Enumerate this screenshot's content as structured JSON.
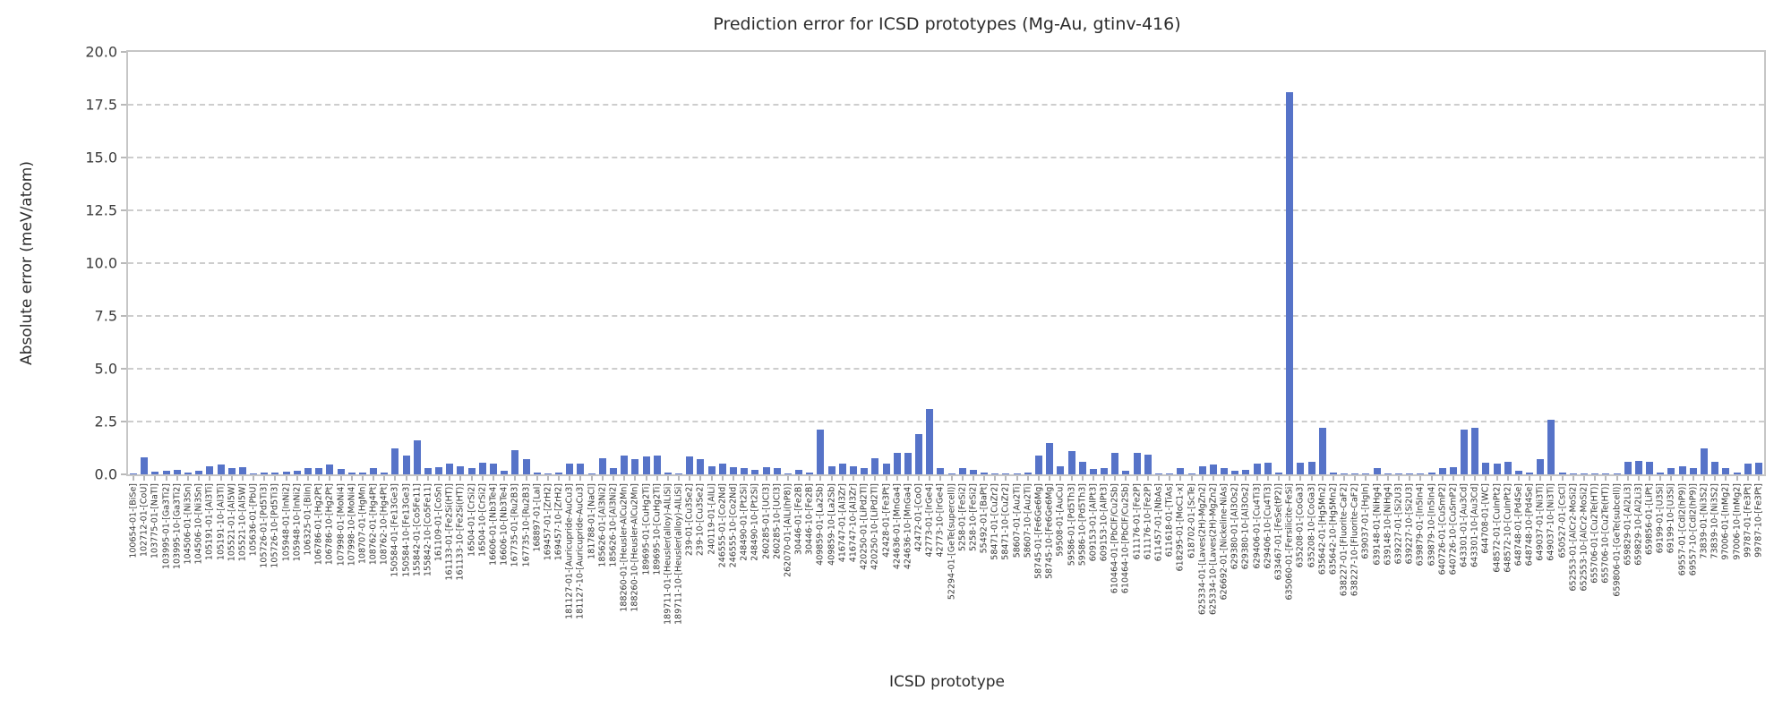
{
  "chart_data": {
    "type": "bar",
    "title": "Prediction error for ICSD prototypes (Mg-Au, gtinv-416)",
    "xlabel": "ICSD prototype",
    "ylabel": "Absolute error (meV/atom)",
    "ylim": [
      0,
      20
    ],
    "yticks": [
      "0.0",
      "2.5",
      "5.0",
      "7.5",
      "10.0",
      "12.5",
      "15.0",
      "17.5",
      "20.0"
    ],
    "grid": "horizontal-dashed",
    "legend": "none",
    "bar_color": "#5673C8",
    "categories": [
      "100654-01-[BiSe]",
      "102712-01-[CoU]",
      "103775-01-[NaTl]",
      "103995-01-[Ga3Ti2]",
      "103995-10-[Ga3Ti2]",
      "104506-01-[Ni3Sn]",
      "104506-10-[Ni3Sn]",
      "105191-01-[Al3Ti]",
      "105191-10-[Al3Ti]",
      "105521-01-[Al5W]",
      "105521-10-[Al5W]",
      "105636-01-[PbU]",
      "105726-01-[Pd5Ti3]",
      "105726-10-[Pd5Ti3]",
      "105948-01-[InNi2]",
      "105948-10-[InNi2]",
      "106325-01-[BiIn]",
      "106786-01-[Hg2Pt]",
      "106786-10-[Hg2Pt]",
      "107998-01-[MoNi4]",
      "107998-10-[MoNi4]",
      "108707-01-[HgMn]",
      "108762-01-[Hg4Pt]",
      "108762-10-[Hg4Pt]",
      "150584-01-[Fe13Ge3]",
      "150584-10-[Fe13Ge3]",
      "155842-01-[Co5Fe11]",
      "155842-10-[Co5Fe11]",
      "161109-01-[CoSn]",
      "161133-01-[Fe2Si(HT)]",
      "161133-10-[Fe2Si(HT)]",
      "16504-01-[CrSi2]",
      "16504-10-[CrSi2]",
      "16606-01-[Nb3Te4]",
      "16606-10-[Nb3Te4]",
      "167735-01-[Ru2B3]",
      "167735-10-[Ru2B3]",
      "168897-01-[LaI]",
      "169457-01-[ZrH2]",
      "169457-10-[ZrH2]",
      "181127-01-[Auricupride-AuCu3]",
      "181127-10-[Auricupride-AuCu3]",
      "181788-01-[NaCl]",
      "185626-01-[Al3Ni2]",
      "185626-10-[Al3Ni2]",
      "188260-01-[Heusler-AlCu2Mn]",
      "188260-10-[Heusler-AlCu2Mn]",
      "189695-01-[CuHg2Ti]",
      "189695-10-[CuHg2Ti]",
      "189711-01-[Heusler(alloy)-AlLiSi]",
      "189711-10-[Heusler(alloy)-AlLiSi]",
      "239-01-[Cu3Se2]",
      "239-10-[Cu3Se2]",
      "240119-01-[AlLi]",
      "246555-01-[Co2Nd]",
      "246555-10-[Co2Nd]",
      "248490-01-[Pt2Si]",
      "248490-10-[Pt2Si]",
      "260285-01-[UCl3]",
      "260285-10-[UCl3]",
      "262070-01-[AlLi(hP8)]",
      "30446-01-[Fe2B]",
      "30446-10-[Fe2B]",
      "409859-01-[La2Sb]",
      "409859-10-[La2Sb]",
      "416747-01-[Al3Zr]",
      "416747-10-[Al3Zr]",
      "420250-01-[LiPd2Tl]",
      "420250-10-[LiPd2Tl]",
      "42428-01-[Fe3Pt]",
      "424636-01-[MnGa4]",
      "424636-10-[MnGa4]",
      "42472-01-[CoO]",
      "42773-01-[IrGe4]",
      "42773-10-[IrGe4]",
      "52294-01-[GeTe(supercell)]",
      "5258-01-[FeSi2]",
      "5258-10-[FeSi2]",
      "55492-01-[BaPt]",
      "58471-01-[CuZr2]",
      "58471-10-[CuZr2]",
      "58607-01-[Au2Ti]",
      "58607-10-[Au2Ti]",
      "58745-01-[Fe6Ge6Mg]",
      "58745-10-[Fe6Ge6Mg]",
      "59508-01-[AuCu]",
      "59586-01-[Pd5Th3]",
      "59586-10-[Pd5Th3]",
      "609153-01-[AlPt3]",
      "609153-10-[AlPt3]",
      "610464-01-[PbClF/Cu2Sb]",
      "610464-10-[PbClF/Cu2Sb]",
      "611176-01-[Fe2P]",
      "611176-10-[Fe2P]",
      "611457-01-[NbAs]",
      "611618-01-[TiAs]",
      "618295-01-[MoC1-x]",
      "618702-01-[ScTe]",
      "625334-01-[Laves(2H)-MgZn2]",
      "625334-10-[Laves(2H)-MgZn2]",
      "626692-01-[Nickeline-NiAs]",
      "629380-01-[Al3Os2]",
      "629380-10-[Al3Os2]",
      "629406-01-[Cu4Ti3]",
      "629406-10-[Cu4Ti3]",
      "633467-01-[FeSe(tP2)]",
      "635060-01-[Fersilicite-FeSi]",
      "635208-01-[CoGa3]",
      "635208-10-[CoGa3]",
      "635642-01-[Hg5Mn2]",
      "635642-10-[Hg5Mn2]",
      "638227-01-[Fluorite-CaF2]",
      "638227-10-[Fluorite-CaF2]",
      "639037-01-[HgIn]",
      "639148-01-[NiHg4]",
      "639148-10-[NiHg4]",
      "639227-01-[Si2U3]",
      "639227-10-[Si2U3]",
      "639879-01-[In5In4]",
      "639879-10-[In5In4]",
      "640726-01-[CuSmP2]",
      "640726-10-[CuSmP2]",
      "643301-01-[Au3Cd]",
      "643301-10-[Au3Cd]",
      "644708-01-[WC]",
      "648572-01-[CuInPt2]",
      "648572-10-[CuInPt2]",
      "648748-01-[Pd4Se]",
      "648748-10-[Pd4Se]",
      "649037-01-[Ni3Ti]",
      "649037-10-[Ni3Ti]",
      "650527-01-[CsCl]",
      "652553-01-[AlCr2-MoSi2]",
      "652553-10-[AlCr2-MoSi2]",
      "655706-01-[Cu2Te(HT)]",
      "655706-10-[Cu2Te(HT)]",
      "659806-01-[GeTe(subcell)]",
      "659829-01-[Al2Li3]",
      "659829-10-[Al2Li3]",
      "659856-01-[LiPt]",
      "69199-01-[U3Si]",
      "69199-10-[U3Si]",
      "69557-01-[CdI2(hP9)]",
      "69557-10-[CdI2(hP9)]",
      "73839-01-[Ni3S2]",
      "73839-10-[Ni3S2]",
      "97006-01-[InMg2]",
      "97006-10-[InMg2]",
      "99787-01-[Fe3Pt]",
      "99787-10-[Fe3Pt]"
    ],
    "values": [
      0.05,
      0.8,
      0.12,
      0.15,
      0.2,
      0.1,
      0.15,
      0.4,
      0.45,
      0.3,
      0.35,
      0.05,
      0.1,
      0.1,
      0.12,
      0.15,
      0.3,
      0.3,
      0.45,
      0.25,
      0.1,
      0.1,
      0.3,
      0.1,
      1.25,
      0.9,
      1.6,
      0.3,
      0.35,
      0.5,
      0.4,
      0.3,
      0.55,
      0.5,
      0.15,
      1.15,
      0.7,
      0.1,
      0.05,
      0.1,
      0.5,
      0.5,
      0.05,
      0.75,
      0.3,
      0.9,
      0.7,
      0.85,
      0.9,
      0.1,
      0.05,
      0.85,
      0.7,
      0.4,
      0.5,
      0.35,
      0.3,
      0.2,
      0.35,
      0.3,
      0.05,
      0.2,
      0.1,
      2.1,
      0.4,
      0.5,
      0.4,
      0.3,
      0.75,
      0.5,
      1.0,
      1.0,
      1.9,
      3.1,
      0.3,
      0.05,
      0.3,
      0.2,
      0.1,
      0.05,
      0.05,
      0.05,
      0.1,
      0.9,
      1.5,
      0.4,
      1.1,
      0.6,
      0.25,
      0.3,
      1.0,
      0.15,
      1.0,
      0.95,
      0.05,
      0.05,
      0.3,
      0.05,
      0.4,
      0.45,
      0.3,
      0.15,
      0.2,
      0.5,
      0.55,
      0.1,
      18.1,
      0.55,
      0.6,
      2.2,
      0.1,
      0.05,
      0.05,
      0.05,
      0.3,
      0.05,
      0.05,
      0.05,
      0.05,
      0.1,
      0.3,
      0.35,
      2.1,
      2.2,
      0.55,
      0.5,
      0.6,
      0.15,
      0.1,
      0.7,
      2.6,
      0.1,
      0.05,
      0.05,
      0.05,
      0.05,
      0.05,
      0.6,
      0.65,
      0.6,
      0.1,
      0.3,
      0.4,
      0.3,
      1.25,
      0.6,
      0.3,
      0.1,
      0.5,
      0.55
    ]
  }
}
